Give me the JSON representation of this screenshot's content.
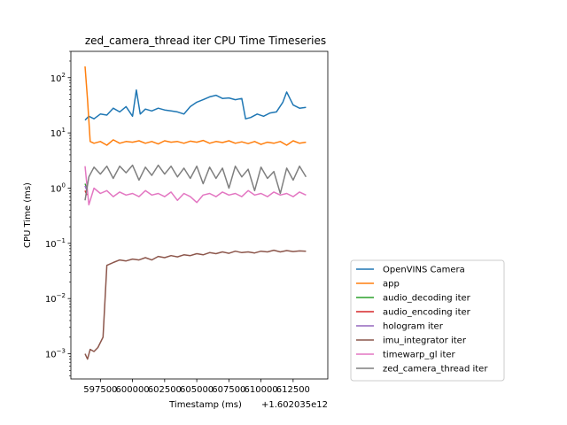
{
  "chart_data": {
    "type": "line",
    "title": "zed_camera_thread iter CPU Time Timeseries",
    "xlabel": "Timestamp (ms)",
    "ylabel": "CPU Time (ms)",
    "x_offset_label": "+1.602035e12",
    "y_scale": "log",
    "xlim": [
      595200,
      615200
    ],
    "ylim": [
      0.00035,
      300
    ],
    "grid": false,
    "legend_position": "lower-right-outside",
    "x_ticks": [
      {
        "value": 597500,
        "label": "597500"
      },
      {
        "value": 600000,
        "label": "600000"
      },
      {
        "value": 602500,
        "label": "602500"
      },
      {
        "value": 605000,
        "label": "605000"
      },
      {
        "value": 607500,
        "label": "607500"
      },
      {
        "value": 610000,
        "label": "610000"
      },
      {
        "value": 612500,
        "label": "612500"
      }
    ],
    "y_ticks": [
      {
        "value": 0.001,
        "base": "10",
        "exp": "−3"
      },
      {
        "value": 0.01,
        "base": "10",
        "exp": "−2"
      },
      {
        "value": 0.1,
        "base": "10",
        "exp": "−1"
      },
      {
        "value": 1,
        "base": "10",
        "exp": "0"
      },
      {
        "value": 10,
        "base": "10",
        "exp": "1"
      },
      {
        "value": 100,
        "base": "10",
        "exp": "2"
      }
    ],
    "series": [
      {
        "name": "OpenVINS Camera",
        "color": "#1f77b4",
        "x": [
          596300,
          596600,
          597000,
          597500,
          598000,
          598500,
          599000,
          599500,
          600000,
          600300,
          600600,
          601000,
          601500,
          602000,
          602500,
          603000,
          603500,
          604000,
          604500,
          605000,
          605500,
          606000,
          606500,
          607000,
          607500,
          608000,
          608500,
          608800,
          609200,
          609700,
          610200,
          610700,
          611200,
          611700,
          612000,
          612500,
          613000,
          613500
        ],
        "values": [
          17,
          20,
          18,
          22,
          21,
          28,
          24,
          30,
          20,
          60,
          22,
          27,
          25,
          28,
          26,
          25,
          24,
          22,
          30,
          36,
          40,
          45,
          48,
          42,
          43,
          40,
          42,
          18,
          19,
          22,
          20,
          23,
          24,
          36,
          55,
          32,
          28,
          29
        ]
      },
      {
        "name": "app",
        "color": "#ff7f0e",
        "x": [
          596300,
          596500,
          596700,
          597000,
          597500,
          598000,
          598500,
          599000,
          599500,
          600000,
          600500,
          601000,
          601500,
          602000,
          602500,
          603000,
          603500,
          604000,
          604500,
          605000,
          605500,
          606000,
          606500,
          607000,
          607500,
          608000,
          608500,
          609000,
          609500,
          610000,
          610500,
          611000,
          611500,
          612000,
          612500,
          613000,
          613500
        ],
        "values": [
          160,
          40,
          7,
          6.5,
          7,
          6,
          7.5,
          6.5,
          7,
          6.8,
          7.2,
          6.5,
          7,
          6.3,
          7.2,
          6.8,
          7,
          6.5,
          7.1,
          6.8,
          7.3,
          6.5,
          7,
          6.7,
          7.2,
          6.5,
          6.9,
          6.4,
          7,
          6.2,
          6.8,
          6.5,
          7,
          6,
          7.2,
          6.5,
          6.8
        ]
      },
      {
        "name": "audio_decoding iter",
        "color": "#2ca02c",
        "x": [
          596300,
          596450
        ],
        "values": [
          1.2,
          1.0
        ]
      },
      {
        "name": "audio_encoding iter",
        "color": "#d62728",
        "x": [
          596300,
          596450
        ],
        "values": [
          0.9,
          0.75
        ]
      },
      {
        "name": "hologram iter",
        "color": "#9467bd",
        "x": [
          596300,
          596450
        ],
        "values": [
          1.1,
          0.9
        ]
      },
      {
        "name": "imu_integrator iter",
        "color": "#8c564b",
        "x": [
          596300,
          596500,
          596700,
          597000,
          597300,
          597700,
          598000,
          598500,
          599000,
          599500,
          600000,
          600500,
          601000,
          601500,
          602000,
          602500,
          603000,
          603500,
          604000,
          604500,
          605000,
          605500,
          606000,
          606500,
          607000,
          607500,
          608000,
          608500,
          609000,
          609500,
          610000,
          610500,
          611000,
          611500,
          612000,
          612500,
          613000,
          613500
        ],
        "values": [
          0.001,
          0.0008,
          0.0012,
          0.0011,
          0.0013,
          0.002,
          0.04,
          0.045,
          0.05,
          0.048,
          0.052,
          0.05,
          0.055,
          0.05,
          0.058,
          0.055,
          0.06,
          0.057,
          0.062,
          0.06,
          0.065,
          0.062,
          0.068,
          0.065,
          0.07,
          0.066,
          0.072,
          0.068,
          0.07,
          0.067,
          0.072,
          0.07,
          0.075,
          0.07,
          0.074,
          0.071,
          0.073,
          0.072
        ]
      },
      {
        "name": "timewarp_gl iter",
        "color": "#e377c2",
        "x": [
          596300,
          596600,
          597000,
          597500,
          598000,
          598500,
          599000,
          599500,
          600000,
          600500,
          601000,
          601500,
          602000,
          602500,
          603000,
          603500,
          604000,
          604500,
          605000,
          605500,
          606000,
          606500,
          607000,
          607500,
          608000,
          608500,
          609000,
          609500,
          610000,
          610500,
          611000,
          611500,
          612000,
          612500,
          613000,
          613500
        ],
        "values": [
          2.5,
          0.5,
          1.0,
          0.8,
          0.9,
          0.7,
          0.85,
          0.75,
          0.8,
          0.7,
          0.9,
          0.75,
          0.8,
          0.7,
          0.85,
          0.6,
          0.8,
          0.7,
          0.55,
          0.75,
          0.8,
          0.7,
          0.85,
          0.75,
          0.8,
          0.7,
          0.9,
          0.75,
          0.8,
          0.7,
          0.85,
          0.75,
          0.8,
          0.7,
          0.85,
          0.75
        ]
      },
      {
        "name": "zed_camera_thread iter",
        "color": "#7f7f7f",
        "x": [
          596300,
          596600,
          597000,
          597500,
          598000,
          598500,
          599000,
          599500,
          600000,
          600500,
          601000,
          601500,
          602000,
          602500,
          603000,
          603500,
          604000,
          604500,
          605000,
          605500,
          606000,
          606500,
          607000,
          607500,
          608000,
          608500,
          609000,
          609500,
          610000,
          610500,
          611000,
          611500,
          612000,
          612500,
          613000,
          613500
        ],
        "values": [
          0.6,
          1.6,
          2.4,
          1.8,
          2.5,
          1.5,
          2.5,
          1.9,
          2.6,
          1.4,
          2.4,
          1.7,
          2.6,
          1.8,
          2.5,
          1.6,
          2.3,
          1.5,
          2.5,
          1.2,
          2.4,
          1.5,
          2.3,
          1.0,
          2.5,
          1.6,
          2.2,
          0.9,
          2.4,
          1.5,
          2.0,
          0.8,
          2.3,
          1.4,
          2.5,
          1.6
        ]
      }
    ]
  }
}
